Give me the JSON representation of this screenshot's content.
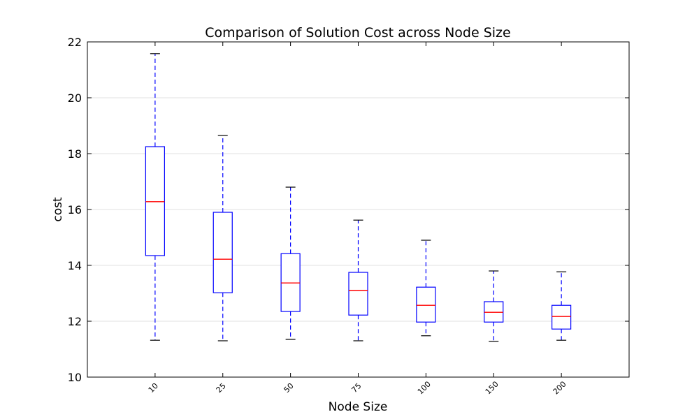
{
  "chart_data": {
    "type": "box",
    "title": "Comparison of Solution Cost across Node Size",
    "xlabel": "Node Size",
    "ylabel": "cost",
    "categories": [
      "10",
      "25",
      "50",
      "75",
      "100",
      "150",
      "200"
    ],
    "ylim": [
      10,
      22
    ],
    "yticks": [
      10,
      12,
      14,
      16,
      18,
      20,
      22
    ],
    "grid": "horizontal",
    "boxes": [
      {
        "whisker_low": 11.32,
        "q1": 14.35,
        "median": 16.28,
        "q3": 18.25,
        "whisker_high": 21.58
      },
      {
        "whisker_low": 11.3,
        "q1": 13.02,
        "median": 14.22,
        "q3": 15.9,
        "whisker_high": 18.65
      },
      {
        "whisker_low": 11.35,
        "q1": 12.35,
        "median": 13.37,
        "q3": 14.42,
        "whisker_high": 16.8
      },
      {
        "whisker_low": 11.3,
        "q1": 12.22,
        "median": 13.1,
        "q3": 13.75,
        "whisker_high": 15.62
      },
      {
        "whisker_low": 11.48,
        "q1": 11.97,
        "median": 12.57,
        "q3": 13.22,
        "whisker_high": 14.9
      },
      {
        "whisker_low": 11.28,
        "q1": 11.97,
        "median": 12.32,
        "q3": 12.7,
        "whisker_high": 13.8
      },
      {
        "whisker_low": 11.32,
        "q1": 11.72,
        "median": 12.17,
        "q3": 12.57,
        "whisker_high": 13.77
      }
    ],
    "colors": {
      "box": "#0000ff",
      "median": "#ff0000",
      "cap": "#000000",
      "grid": "#e0e0e0",
      "axis": "#000000"
    }
  }
}
